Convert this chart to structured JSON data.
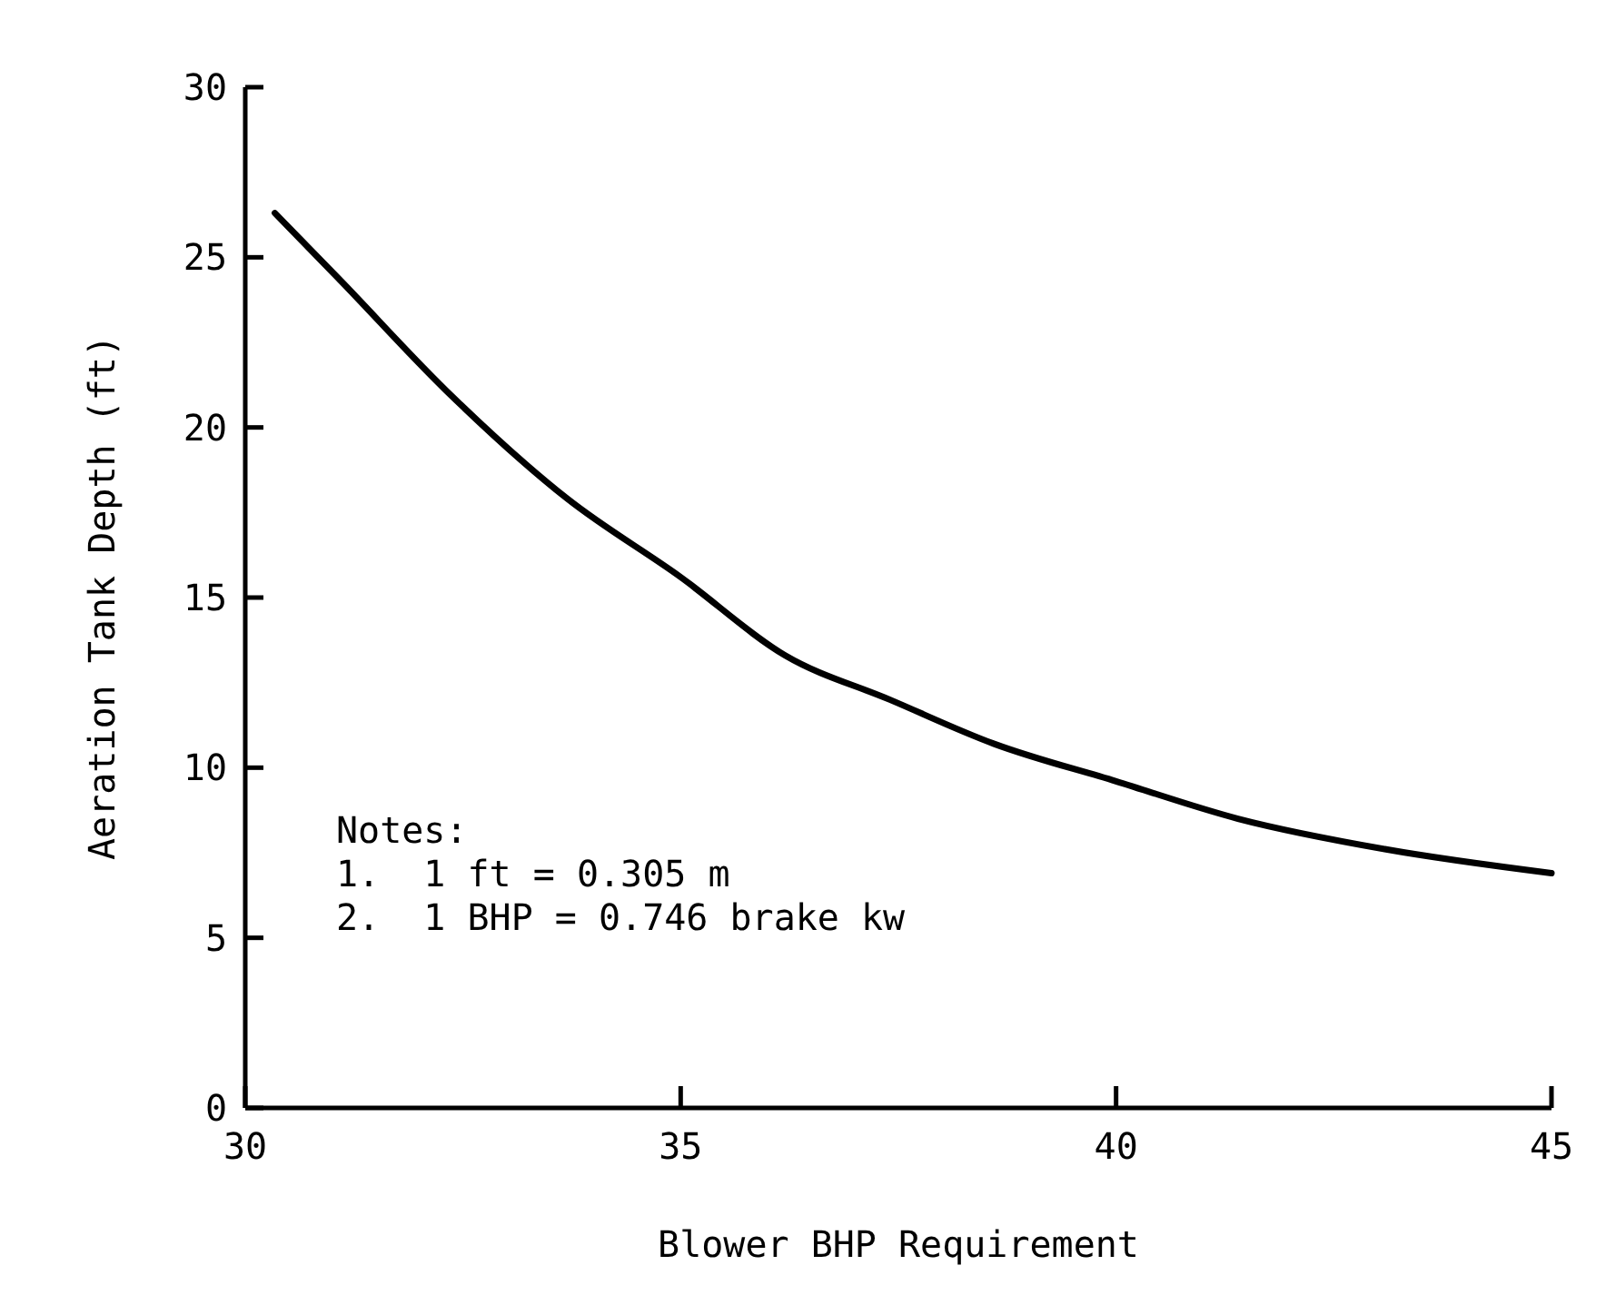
{
  "chart_data": {
    "type": "line",
    "xlabel": "Blower BHP Requirement",
    "ylabel": "Aeration Tank Depth (ft)",
    "x": [
      30.34,
      31.1,
      32.3,
      33.7,
      35.0,
      36.2,
      37.4,
      38.6,
      40.0,
      41.4,
      43.1,
      45.0
    ],
    "series": [
      {
        "color": "#000000",
        "values": [
          26.3,
          24.3,
          21.1,
          17.9,
          15.6,
          13.3,
          12.0,
          10.7,
          9.6,
          8.5,
          7.6,
          6.9
        ]
      }
    ],
    "xlim": [
      30,
      45
    ],
    "xticks": [
      30,
      35,
      40,
      45
    ],
    "ylim": [
      0,
      30
    ],
    "yticks": [
      0,
      5,
      10,
      15,
      20,
      25,
      30
    ],
    "grid": false,
    "marker": "none",
    "line_style": "solid",
    "annotations": [
      "Notes:",
      "1.  1 ft = 0.305 m",
      "2.  1 BHP = 0.746 brake kw"
    ]
  }
}
